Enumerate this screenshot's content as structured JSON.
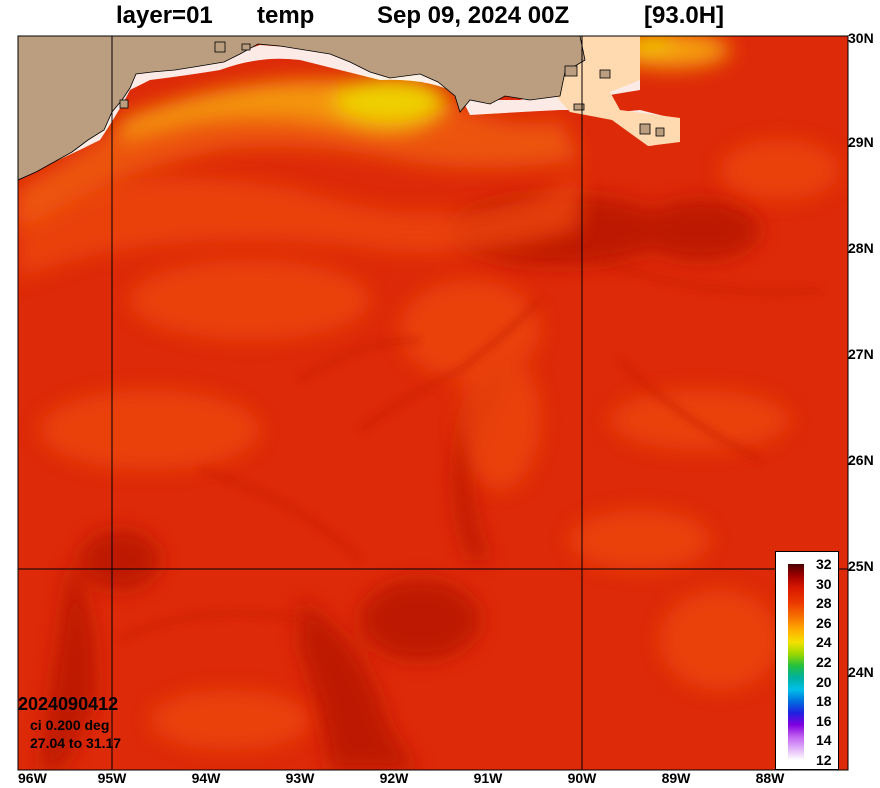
{
  "title": {
    "layer": "layer=01",
    "variable": "temp",
    "datetime": "Sep 09, 2024 00Z",
    "forecast": "[93.0H]"
  },
  "axes": {
    "x_ticks": [
      "96W",
      "95W",
      "94W",
      "93W",
      "92W",
      "91W",
      "90W",
      "89W",
      "88W"
    ],
    "y_ticks": [
      "30N",
      "29N",
      "28N",
      "27N",
      "26N",
      "25N",
      "24N"
    ],
    "lon_range": [
      -96,
      -87.2
    ],
    "lat_range": [
      23.0,
      30.0
    ],
    "grid_lines": {
      "lon": [
        -95,
        -90
      ],
      "lat": [
        25
      ]
    }
  },
  "info": {
    "run_id": "2024090412",
    "contour_interval": "ci 0.200 deg",
    "value_range": "27.04 to 31.17"
  },
  "colorbar": {
    "labels": [
      "32",
      "30",
      "28",
      "26",
      "24",
      "22",
      "20",
      "18",
      "16",
      "14",
      "12"
    ]
  },
  "colors": {
    "land": "#bb9e80",
    "coast_fill": "#ffd9b0",
    "sst_base": "#e02e08",
    "sst_warm": "#b81200",
    "sst_cool": "#f05010",
    "shelf_orange": "#f49a10",
    "shelf_yellow": "#eed000"
  }
}
